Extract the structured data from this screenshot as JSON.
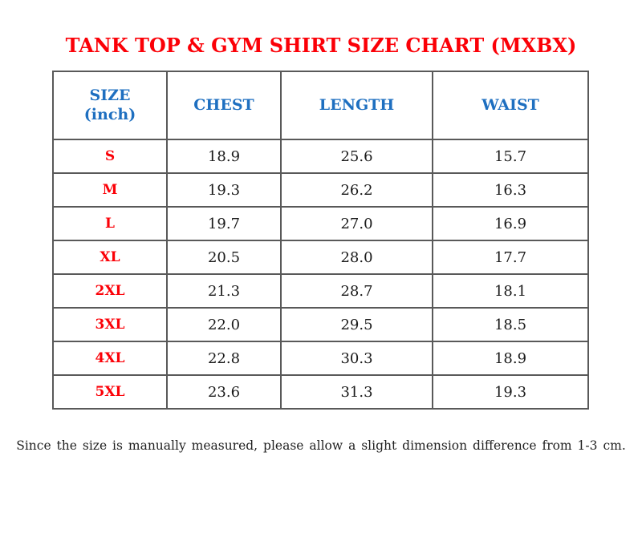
{
  "page": {
    "title": "TANK TOP & GYM SHIRT SIZE CHART (MXBX)"
  },
  "table": {
    "headers": {
      "size_line1": "SIZE",
      "size_line2": "(inch)",
      "chest": "CHEST",
      "length": "LENGTH",
      "waist": "WAIST"
    },
    "rows": [
      {
        "size": "S",
        "chest": "18.9",
        "length": "25.6",
        "waist": "15.7"
      },
      {
        "size": "M",
        "chest": "19.3",
        "length": "26.2",
        "waist": "16.3"
      },
      {
        "size": "L",
        "chest": "19.7",
        "length": "27.0",
        "waist": "16.9"
      },
      {
        "size": "XL",
        "chest": "20.5",
        "length": "28.0",
        "waist": "17.7"
      },
      {
        "size": "2XL",
        "chest": "21.3",
        "length": "28.7",
        "waist": "18.1"
      },
      {
        "size": "3XL",
        "chest": "22.0",
        "length": "29.5",
        "waist": "18.5"
      },
      {
        "size": "4XL",
        "chest": "22.8",
        "length": "30.3",
        "waist": "18.9"
      },
      {
        "size": "5XL",
        "chest": "23.6",
        "length": "31.3",
        "waist": "19.3"
      }
    ]
  },
  "note": "Since the size is manually measured, please allow a slight dimension difference from 1-3 cm.",
  "colors": {
    "title_red": "#fb0007",
    "size_label_red": "#fb0007",
    "header_blue": "#1e6fc0",
    "body_text": "#1a1a1a",
    "border_gray": "#595959",
    "background": "#ffffff"
  }
}
